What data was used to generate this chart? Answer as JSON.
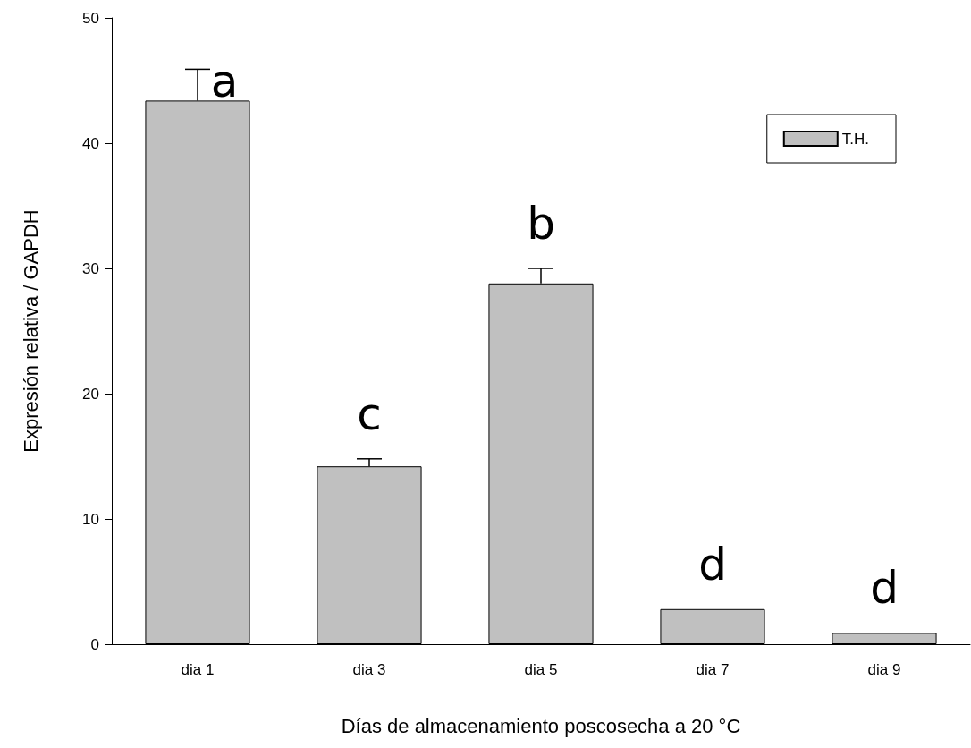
{
  "chart_data": {
    "type": "bar",
    "xlabel": "Días de almacenamiento poscosecha a 20 °C",
    "ylabel": "Expresión relativa / GAPDH",
    "categories": [
      "dia 1",
      "dia 3",
      "dia 5",
      "dia 7",
      "dia 9"
    ],
    "series": [
      {
        "name": "T.H.",
        "color": "#c0c0c0",
        "values": [
          43.4,
          14.2,
          28.8,
          2.8,
          0.9
        ],
        "errors": [
          2.5,
          0.6,
          1.2,
          null,
          null
        ]
      }
    ],
    "ylim": [
      0,
      50
    ],
    "yticks": [
      0,
      10,
      20,
      30,
      40,
      50
    ],
    "grid": false,
    "legend": "top right",
    "annotations": [
      {
        "text": "a",
        "x": "dia 1",
        "y": 45.9
      },
      {
        "text": "c",
        "x": "dia 3",
        "y": 14.8
      },
      {
        "text": "b",
        "x": "dia 5",
        "y": 30.0
      },
      {
        "text": "d",
        "x": "dia 7",
        "y": 2.8
      },
      {
        "text": "d",
        "x": "dia 9",
        "y": 0.9
      }
    ]
  }
}
